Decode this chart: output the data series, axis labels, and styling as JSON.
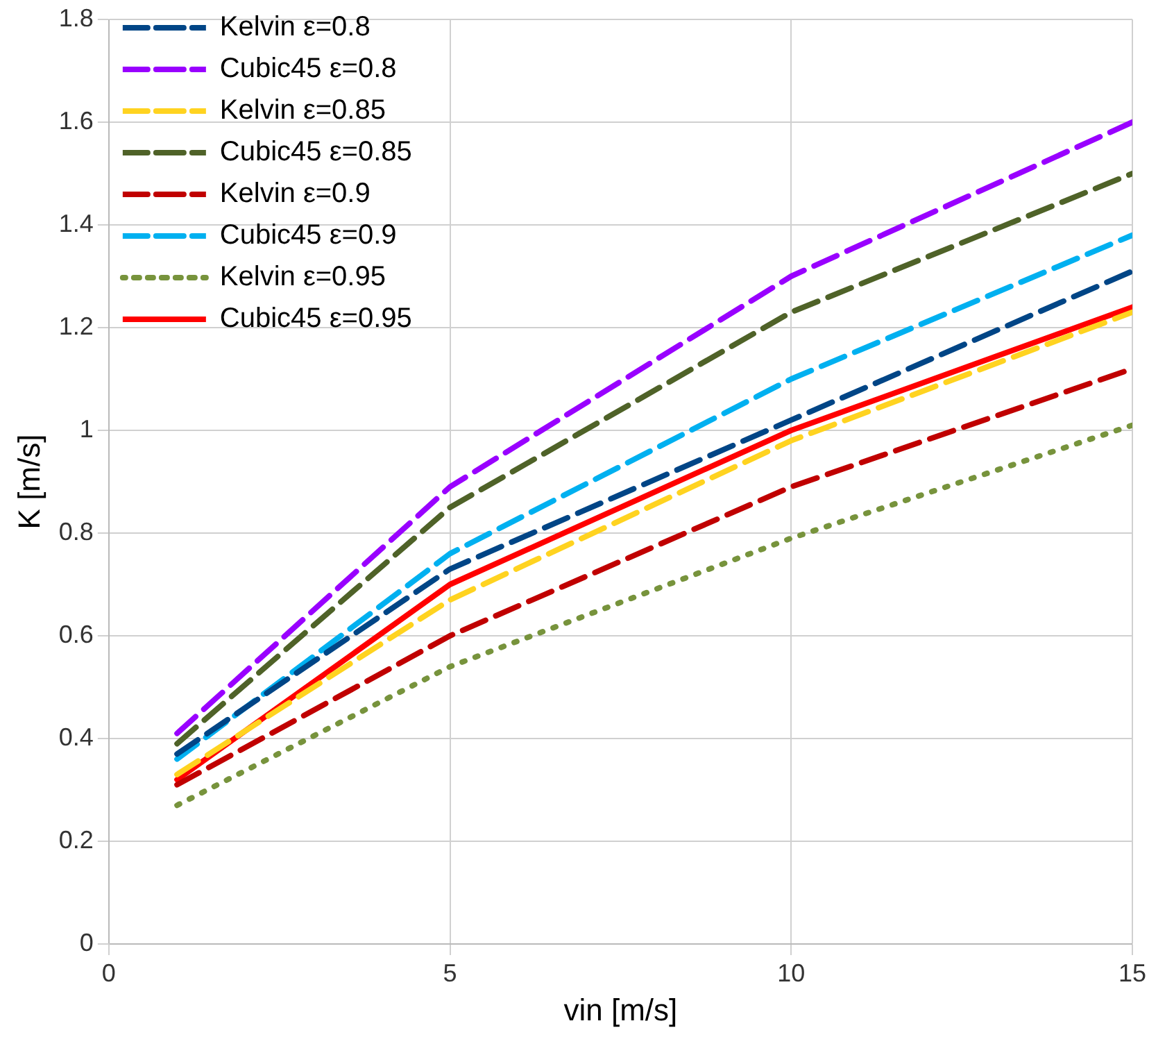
{
  "chart_data": {
    "type": "line",
    "xlabel": "vin [m/s]",
    "ylabel": "K [m/s]",
    "x": [
      1,
      5,
      10,
      15
    ],
    "xlim": [
      0,
      15
    ],
    "xticks": [
      0,
      5,
      10,
      15
    ],
    "ylim": [
      0,
      1.8
    ],
    "yticks": [
      0,
      0.2,
      0.4,
      0.6,
      0.8,
      1,
      1.2,
      1.4,
      1.6,
      1.8
    ],
    "grid": true,
    "legend": "top left",
    "marker": "none",
    "series": [
      {
        "name": "Kelvin ε=0.8",
        "color": "#004586",
        "line_style": "dashed",
        "values": [
          0.37,
          0.73,
          1.02,
          1.31
        ]
      },
      {
        "name": "Cubic45 ε=0.8",
        "color": "#9900ff",
        "line_style": "dashed",
        "values": [
          0.41,
          0.89,
          1.3,
          1.6
        ]
      },
      {
        "name": "Kelvin ε=0.85",
        "color": "#ffd320",
        "line_style": "dashed",
        "values": [
          0.33,
          0.67,
          0.98,
          1.23
        ]
      },
      {
        "name": "Cubic45 ε=0.85",
        "color": "#4f6228",
        "line_style": "dashed",
        "values": [
          0.39,
          0.85,
          1.23,
          1.5
        ]
      },
      {
        "name": "Kelvin ε=0.9",
        "color": "#c00000",
        "line_style": "dashed",
        "values": [
          0.31,
          0.6,
          0.89,
          1.12
        ]
      },
      {
        "name": "Cubic45 ε=0.9",
        "color": "#00b0f0",
        "line_style": "dashed",
        "values": [
          0.36,
          0.76,
          1.1,
          1.38
        ]
      },
      {
        "name": "Kelvin ε=0.95",
        "color": "#77933c",
        "line_style": "dotted",
        "values": [
          0.27,
          0.54,
          0.79,
          1.01
        ]
      },
      {
        "name": "Cubic45 ε=0.95",
        "color": "#ff0000",
        "line_style": "solid",
        "values": [
          0.32,
          0.7,
          1.0,
          1.24
        ]
      }
    ]
  }
}
